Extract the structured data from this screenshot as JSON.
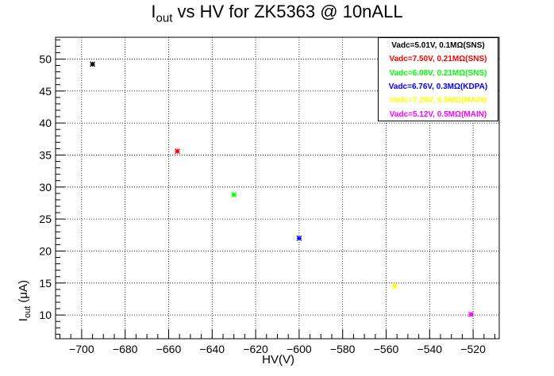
{
  "title": {
    "main": "I",
    "sub": "out",
    "rest": " vs HV for ZK5363 @ 10nALL"
  },
  "chart_data": {
    "type": "scatter",
    "xlabel": "HV(V)",
    "ylabel_main": "I",
    "ylabel_sub": "out",
    "ylabel_unit": " (μA)",
    "xlim": [
      -712,
      -508
    ],
    "ylim": [
      6.3,
      53.4
    ],
    "x_ticks": [
      -700,
      -680,
      -660,
      -640,
      -620,
      -600,
      -580,
      -560,
      -540,
      -520
    ],
    "x_tick_labels": [
      "−700",
      "−680",
      "−660",
      "−640",
      "−620",
      "−600",
      "−580",
      "−560",
      "−540",
      "−520"
    ],
    "y_ticks": [
      10,
      15,
      20,
      25,
      30,
      35,
      40,
      45,
      50
    ],
    "y_tick_labels": [
      "10",
      "15",
      "20",
      "25",
      "30",
      "35",
      "40",
      "45",
      "50"
    ],
    "grid": true,
    "legend_position": "top-right",
    "series": [
      {
        "name": "Vadc=5.01V, 0.1MΩ(SNS)",
        "color": "#000000",
        "x": [
          -695
        ],
        "y": [
          49.2
        ]
      },
      {
        "name": "Vadc=7.50V, 0.21MΩ(SNS)",
        "color": "#ff0000",
        "x": [
          -656
        ],
        "y": [
          35.6
        ]
      },
      {
        "name": "Vadc=6.08V, 0.21MΩ(SNS)",
        "color": "#00ff00",
        "x": [
          -630
        ],
        "y": [
          28.8
        ]
      },
      {
        "name": "Vadc=6.76V, 0.3MΩ(KDPA)",
        "color": "#0000ff",
        "x": [
          -600
        ],
        "y": [
          22.0
        ]
      },
      {
        "name": "Vadc=7.26V, 0.5MΩ(MAIN)",
        "color": "#ffff00",
        "x": [
          -556
        ],
        "y": [
          14.5
        ]
      },
      {
        "name": "Vadc=5.12V, 0.5MΩ(MAIN)",
        "color": "#ff00ff",
        "x": [
          -521
        ],
        "y": [
          10.1
        ]
      }
    ]
  }
}
